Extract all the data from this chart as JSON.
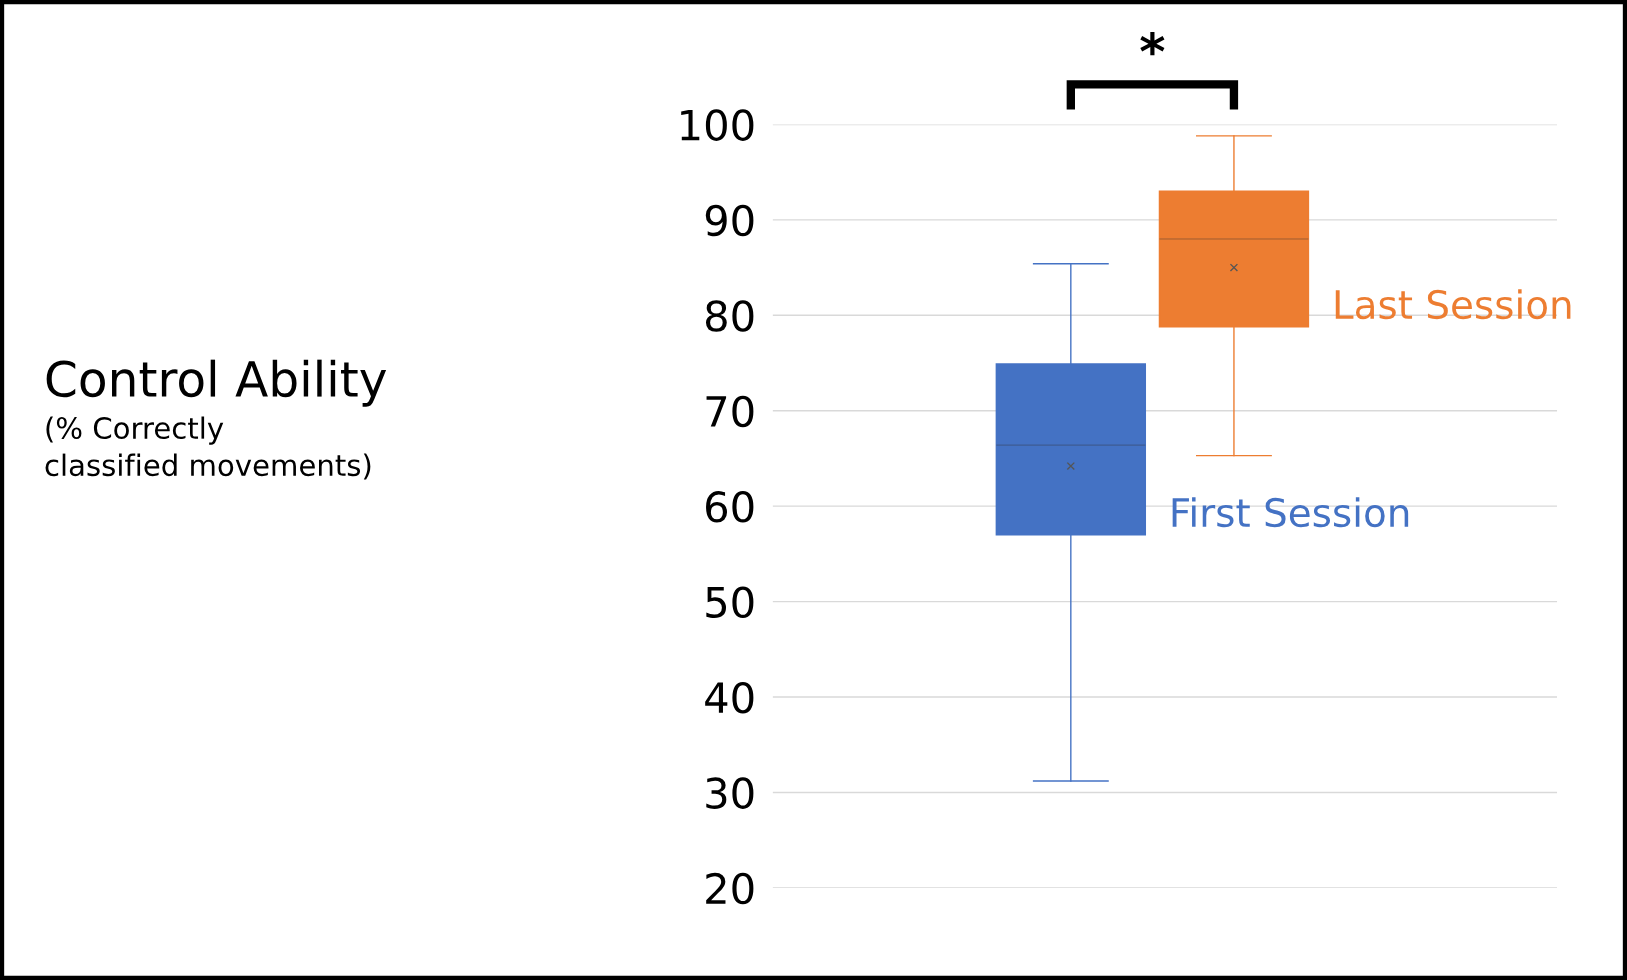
{
  "chart_data": {
    "type": "box",
    "annotations": [
      "Control Ability",
      "(% Correctly\nclassified movements)",
      "*"
    ],
    "categories": [
      null
    ],
    "series": [
      {
        "name": "First Session",
        "color": "#4472c4",
        "boxes": [
          {
            "low": 31.2,
            "q1": 57.0,
            "median": 66.4,
            "q3": 74.9,
            "high": 85.4,
            "mean": 64.2
          }
        ]
      },
      {
        "name": "Last Session",
        "color": "#ed7d31",
        "boxes": [
          {
            "low": 65.3,
            "q1": 78.8,
            "median": 88.0,
            "q3": 93.0,
            "high": 98.8,
            "mean": 85.0
          }
        ]
      }
    ],
    "ylim": [
      20,
      100
    ],
    "yticks": [
      20,
      30,
      40,
      50,
      60,
      70,
      80,
      90,
      100
    ],
    "grid": "y"
  }
}
